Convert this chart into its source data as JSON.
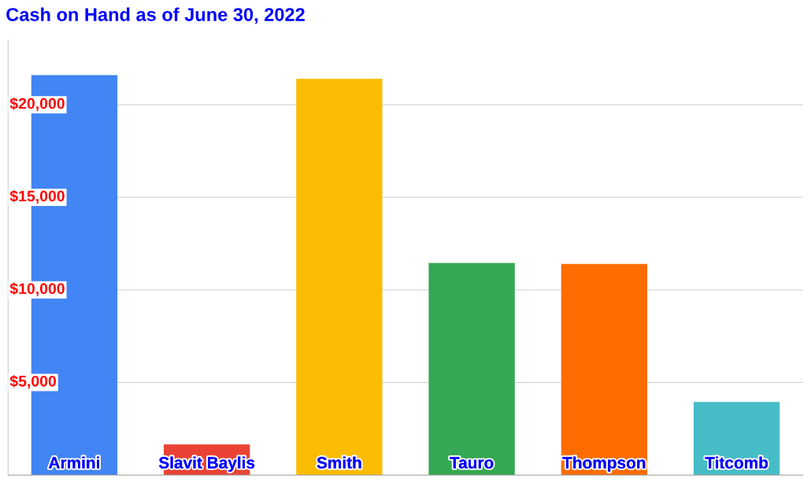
{
  "chart_data": {
    "type": "bar",
    "title": "Cash on Hand as of June 30, 2022",
    "categories": [
      "Armini",
      "Slavit Baylis",
      "Smith",
      "Tauro",
      "Thompson",
      "Titcomb"
    ],
    "values": [
      21600,
      1650,
      21400,
      11450,
      11400,
      3950
    ],
    "colors": [
      "#4285f4",
      "#ea4335",
      "#fbbc04",
      "#34a853",
      "#ff6d01",
      "#46bdc6"
    ],
    "ylim": [
      0,
      23500
    ],
    "yticks": [
      {
        "value": 5000,
        "label": "$5,000"
      },
      {
        "value": 10000,
        "label": "$10,000"
      },
      {
        "value": 15000,
        "label": "$15,000"
      },
      {
        "value": 20000,
        "label": "$20,000"
      }
    ],
    "grid": "y",
    "legend": false
  }
}
